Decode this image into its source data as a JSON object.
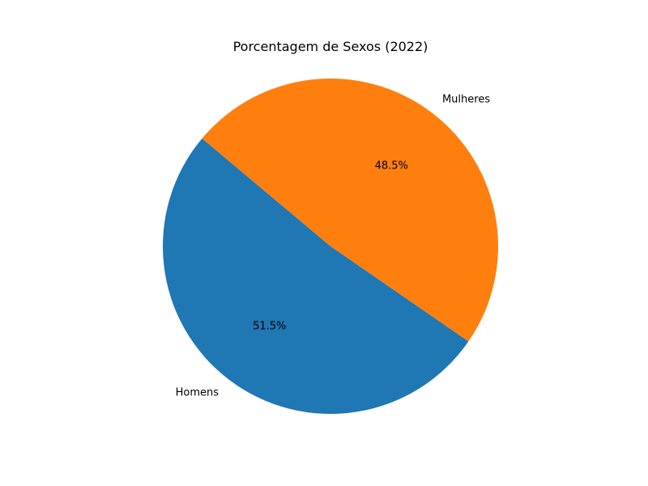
{
  "chart_data": {
    "type": "pie",
    "title": "Porcentagem de Sexos (2022)",
    "categories": [
      "Homens",
      "Mulheres"
    ],
    "values": [
      51.5,
      48.5
    ],
    "percent_labels": [
      "51.5%",
      "48.5%"
    ],
    "colors": [
      "#1f77b4",
      "#ff7f0e"
    ],
    "start_angle_deg": 140,
    "direction": "counterclockwise",
    "legend": "none"
  }
}
